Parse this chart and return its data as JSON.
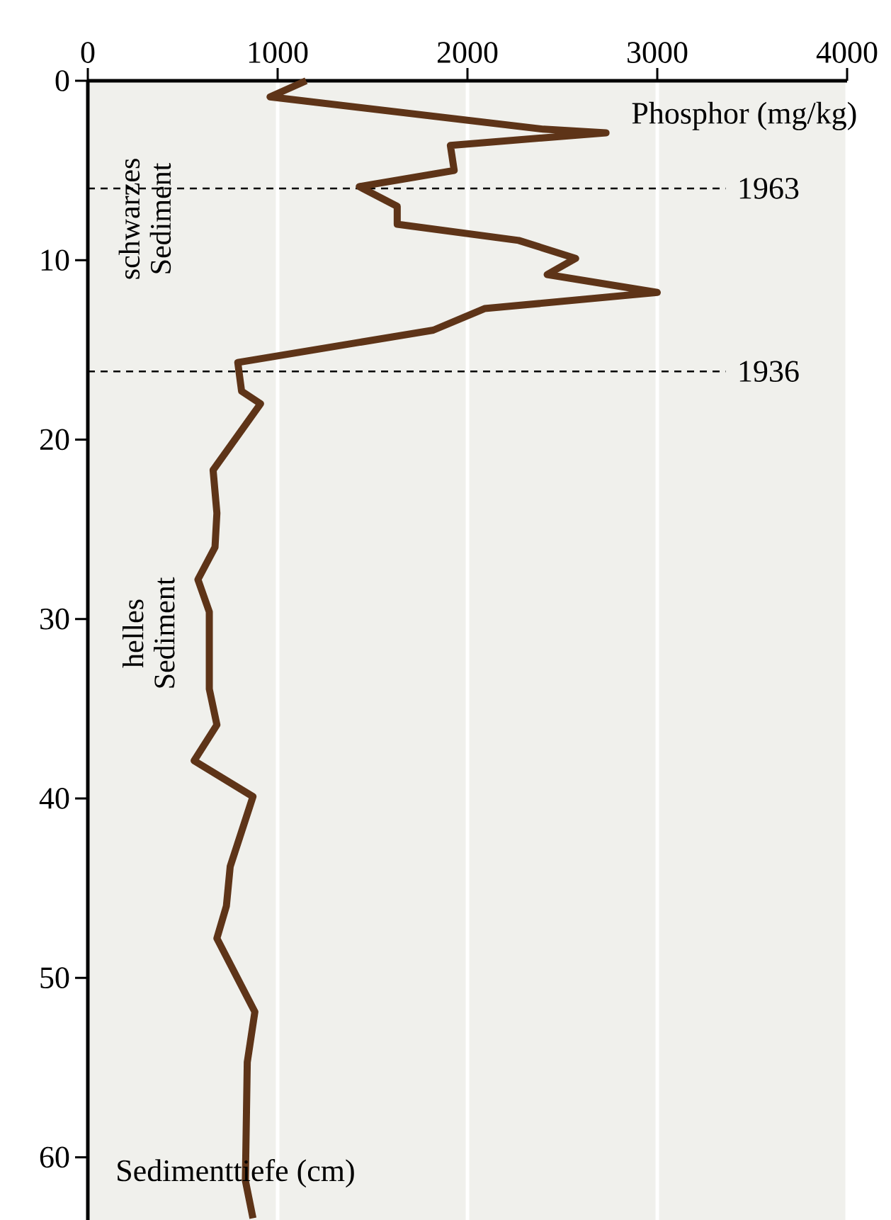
{
  "chart_data": {
    "type": "line",
    "xlabel": "Phosphor (mg/kg)",
    "ylabel": "Sedimenttiefe (cm)",
    "xlim": [
      0,
      4000
    ],
    "xticks": [
      0,
      1000,
      2000,
      3000,
      4000
    ],
    "ylim": [
      63.5,
      0
    ],
    "yticks": [
      0,
      10,
      20,
      30,
      40,
      50,
      60
    ],
    "grid": "x",
    "marker": "none",
    "line_style": "solid",
    "series": [
      {
        "color": "#5e3418",
        "x": [
          1150,
          960,
          2400,
          2730,
          1910,
          1930,
          1430,
          1630,
          1630,
          2270,
          2570,
          2420,
          3000,
          2090,
          1820,
          790,
          810,
          910,
          660,
          680,
          670,
          580,
          640,
          640,
          680,
          560,
          870,
          750,
          730,
          680,
          880,
          840,
          830,
          870
        ],
        "values": [
          0,
          0.9,
          2.7,
          2.9,
          3.6,
          5.0,
          5.9,
          7.0,
          8.0,
          8.9,
          9.9,
          10.8,
          11.8,
          12.7,
          13.9,
          15.7,
          17.3,
          18.0,
          21.7,
          24.1,
          26.0,
          27.8,
          29.6,
          33.9,
          35.9,
          37.9,
          39.9,
          43.8,
          46.0,
          47.8,
          51.9,
          54.7,
          61.3,
          63.4
        ]
      }
    ],
    "ref_lines": [
      {
        "axis": "y",
        "value": 6.0,
        "color": "#000000",
        "line_style": "dashed"
      },
      {
        "axis": "y",
        "value": 16.2,
        "color": "#000000",
        "line_style": "dashed"
      }
    ],
    "annotations": [
      "schwarzes Sediment",
      "helles Sediment",
      "1963",
      "1936"
    ]
  }
}
